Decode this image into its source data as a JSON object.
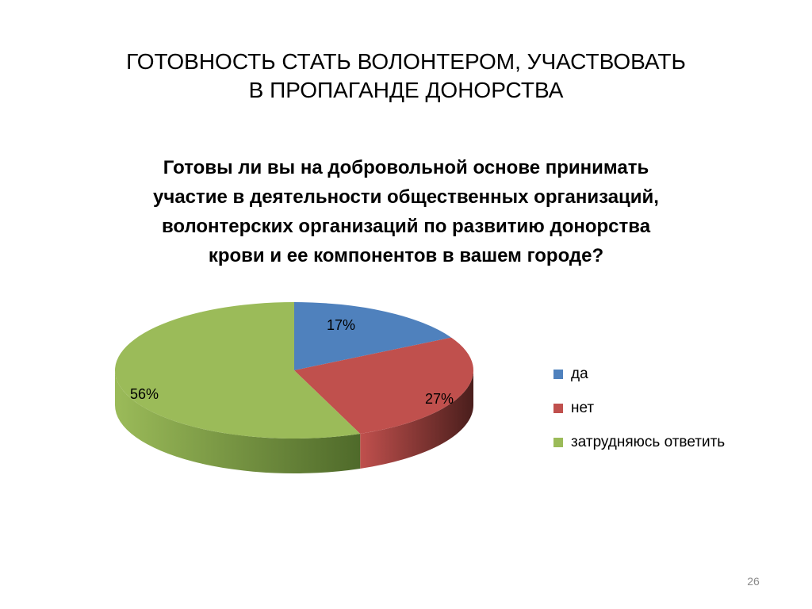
{
  "slide": {
    "title_lines": [
      "ГОТОВНОСТЬ СТАТЬ ВОЛОНТЕРОМ, УЧАСТВОВАТЬ",
      "В ПРОПАГАНДЕ ДОНОРСТВА"
    ],
    "page_number": "26"
  },
  "chart_data": {
    "type": "pie",
    "title_lines": [
      "Готовы ли вы на добровольной основе принимать",
      "участие в деятельности общественных организаций,",
      "волонтерских организаций по развитию донорства",
      "крови и ее компонентов в вашем городе?"
    ],
    "categories": [
      "да",
      "нет",
      "затрудняюсь ответить"
    ],
    "values": [
      17,
      27,
      56
    ],
    "data_labels": [
      "17%",
      "27%",
      "56%"
    ],
    "colors": [
      "#4F81BD",
      "#C0504D",
      "#9BBB59"
    ],
    "side_colors": [
      "#2c4a6e",
      "#4a1e1c",
      "#4f6a2a"
    ],
    "style": "3d",
    "legend_position": "right"
  }
}
